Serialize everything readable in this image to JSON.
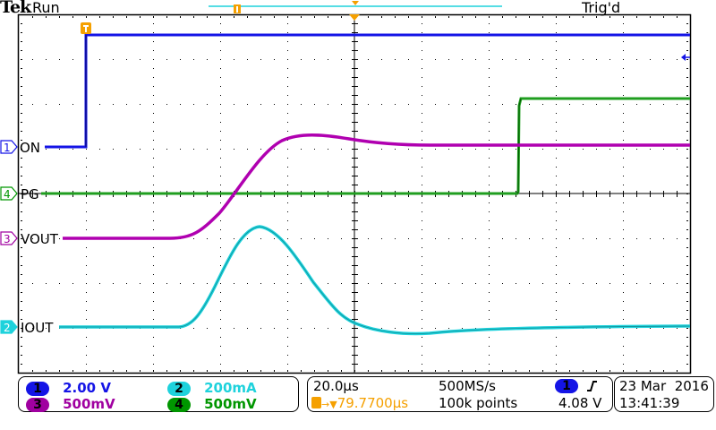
{
  "header": {
    "brand": "Tek",
    "run_state": "Run",
    "trigger_status": "Trig'd"
  },
  "colors": {
    "ch1": "#1a1aff",
    "ch2": "#00c8d2",
    "ch3": "#a000a0",
    "ch4": "#009600",
    "trigger_marker": "#f5a000",
    "graticule": "#000000"
  },
  "channels": [
    {
      "num": "1",
      "label": "ON",
      "scale": "2.00 V",
      "color": "#1414e6"
    },
    {
      "num": "2",
      "label": "IOUT",
      "scale": "200mA",
      "color": "#1ed2dc"
    },
    {
      "num": "3",
      "label": "VOUT",
      "scale": "500mV",
      "color": "#a000a0"
    },
    {
      "num": "4",
      "label": "PG",
      "scale": "500mV",
      "color": "#009600"
    }
  ],
  "horizontal": {
    "time_per_div": "20.0µs",
    "trigger_position": "79.7700µs",
    "sample_rate": "500MS/s",
    "record_length": "100k points"
  },
  "trigger": {
    "source": "1",
    "slope": "rising",
    "level": "4.08 V"
  },
  "datetime": {
    "date": "23 Mar  2016",
    "time": "13:41:39"
  },
  "icons": {
    "trigger_marker": "T-icon",
    "slope": "rising-edge-icon"
  }
}
